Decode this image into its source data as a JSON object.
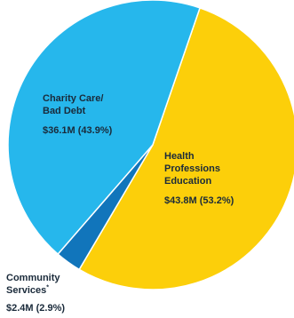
{
  "chart_data": {
    "type": "pie",
    "slices": [
      {
        "label_lines": [
          "Health",
          "Professions",
          "Education"
        ],
        "label_suffix": "",
        "value_label": "$43.8M (53.2%)",
        "amount": 43.8,
        "percent": 53.2,
        "color": "#fccf0a"
      },
      {
        "label_lines": [
          "Community",
          "Services"
        ],
        "label_suffix": "*",
        "value_label": "$2.4M (2.9%)",
        "amount": 2.4,
        "percent": 2.9,
        "color": "#1175bb"
      },
      {
        "label_lines": [
          "Charity Care/",
          "Bad Debt"
        ],
        "label_suffix": "",
        "value_label": "$36.1M (43.9%)",
        "amount": 36.1,
        "percent": 43.9,
        "color": "#26b7ec"
      }
    ]
  }
}
